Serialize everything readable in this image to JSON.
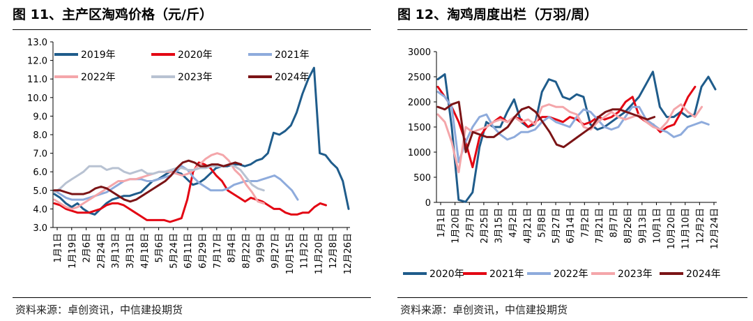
{
  "colors": {
    "c2019": "#1f5c8b",
    "c2020_left": "#e30613",
    "c2021_left": "#8eabdc",
    "c2022_left": "#f4a6aa",
    "c2023_left": "#b8c2d2",
    "c2024_left": "#7b1416",
    "c2020_right": "#1f5c8b",
    "c2021_right": "#e30613",
    "c2022_right": "#8eabdc",
    "c2023_right": "#f4a6aa",
    "c2024_right": "#7b1416"
  },
  "panel_left": {
    "title": "图 11、主产区淘鸡价格（元/斤）",
    "source": "资料来源：卓创资讯，中信建投期货"
  },
  "panel_right": {
    "title": "图 12、淘鸡周度出栏（万羽/周）",
    "source": "资料来源：卓创资讯，中信建投期货"
  },
  "chart_data": [
    {
      "type": "line",
      "title": "主产区淘鸡价格（元/斤）",
      "ylim": [
        3.0,
        13.0
      ],
      "yticks": [
        "3.0",
        "4.0",
        "5.0",
        "6.0",
        "7.0",
        "8.0",
        "9.0",
        "10.0",
        "11.0",
        "12.0",
        "13.0"
      ],
      "x_ticks": [
        "1月1日",
        "1月19日",
        "2月6日",
        "2月24日",
        "3月13日",
        "3月31日",
        "4月18日",
        "5月6日",
        "5月24日",
        "6月11日",
        "6月29日",
        "7月17日",
        "8月4日",
        "8月22日",
        "9月9日",
        "9月27日",
        "10月15日",
        "11月2日",
        "11月20日",
        "12月8日",
        "12月26日"
      ],
      "legend_position": "top",
      "series": [
        {
          "name": "2019年",
          "color_key": "c2019",
          "values": [
            4.8,
            4.6,
            4.3,
            4.1,
            4.3,
            4.0,
            3.8,
            3.7,
            4.0,
            4.3,
            4.5,
            4.6,
            4.7,
            4.7,
            4.8,
            4.9,
            5.2,
            5.5,
            5.6,
            5.8,
            6.0,
            6.0,
            5.9,
            5.6,
            5.3,
            5.4,
            5.6,
            5.9,
            6.2,
            6.3,
            6.3,
            6.4,
            6.4,
            6.3,
            6.4,
            6.6,
            6.7,
            7.0,
            8.1,
            8.0,
            8.2,
            8.5,
            9.2,
            10.2,
            11.0,
            11.6,
            7.0,
            6.9,
            6.5,
            6.2,
            5.5,
            4.0
          ]
        },
        {
          "name": "2020年",
          "color_key": "c2020_left",
          "values": [
            4.3,
            4.2,
            4.0,
            3.9,
            3.8,
            3.8,
            3.8,
            3.9,
            4.0,
            4.2,
            4.3,
            4.3,
            4.2,
            4.0,
            3.8,
            3.6,
            3.4,
            3.4,
            3.4,
            3.4,
            3.3,
            3.4,
            3.5,
            4.5,
            6.0,
            6.5,
            6.4,
            6.2,
            5.8,
            5.5,
            5.0,
            4.8,
            4.6,
            4.4,
            4.6,
            4.5,
            4.4,
            4.2,
            4.0,
            4.0,
            3.8,
            3.7,
            3.7,
            3.8,
            3.8,
            4.1,
            4.3,
            4.2
          ]
        },
        {
          "name": "2021年",
          "color_key": "c2021_left",
          "values": [
            5.0,
            4.8,
            4.6,
            4.5,
            4.5,
            4.5,
            4.6,
            4.7,
            4.8,
            4.9,
            5.1,
            5.3,
            5.5,
            5.6,
            5.6,
            5.6,
            5.5,
            5.5,
            5.6,
            5.7,
            5.8,
            6.0,
            6.3,
            6.1,
            5.7,
            5.4,
            5.2,
            5.0,
            5.0,
            5.0,
            5.1,
            5.3,
            5.4,
            5.5,
            5.5,
            5.5,
            5.6,
            5.7,
            5.8,
            5.6,
            5.3,
            5.0,
            4.5
          ]
        },
        {
          "name": "2022年",
          "color_key": "c2022_left",
          "values": [
            4.5,
            4.3,
            4.1,
            4.0,
            4.1,
            4.3,
            4.5,
            4.7,
            4.9,
            5.1,
            5.3,
            5.5,
            5.5,
            5.6,
            5.6,
            5.7,
            5.8,
            5.9,
            6.0,
            6.0,
            6.0,
            5.9,
            5.8,
            5.9,
            6.1,
            6.4,
            6.7,
            6.9,
            7.0,
            6.9,
            6.6,
            6.1,
            5.8,
            5.3,
            4.9,
            4.4,
            4.3
          ]
        },
        {
          "name": "2023年",
          "color_key": "c2023_left",
          "values": [
            4.9,
            5.1,
            5.4,
            5.6,
            5.8,
            6.0,
            6.3,
            6.3,
            6.3,
            6.1,
            6.2,
            6.2,
            6.0,
            5.9,
            6.0,
            6.1,
            5.9,
            5.9,
            6.0,
            6.0,
            6.1,
            6.2,
            6.2,
            6.1,
            6.1,
            6.2,
            6.2,
            6.3,
            6.3,
            6.3,
            6.4,
            6.3,
            6.1,
            5.7,
            5.3,
            5.1,
            5.0
          ]
        },
        {
          "name": "2024年",
          "color_key": "c2024_left",
          "values": [
            5.0,
            5.0,
            4.9,
            4.8,
            4.8,
            4.8,
            4.9,
            5.1,
            5.2,
            5.1,
            4.9,
            4.7,
            4.5,
            4.4,
            4.5,
            4.7,
            4.9,
            5.1,
            5.3,
            5.5,
            5.8,
            6.2,
            6.5,
            6.6,
            6.5,
            6.3,
            6.3,
            6.4,
            6.4,
            6.3,
            6.4,
            6.5,
            6.4
          ]
        }
      ]
    },
    {
      "type": "line",
      "title": "淘鸡周度出栏（万羽/周）",
      "ylim": [
        0,
        3000
      ],
      "yticks": [
        "0",
        "500",
        "1000",
        "1500",
        "2000",
        "2500",
        "3000"
      ],
      "x_ticks": [
        "1月1日",
        "1月20日",
        "2月7日",
        "2月25日",
        "3月15日",
        "4月2日",
        "4月21日",
        "5月8日",
        "5月27日",
        "6月14日",
        "7月2日",
        "7月21日",
        "8月7日",
        "8月26日",
        "9月13日",
        "10月1日",
        "10月20日",
        "11月10日",
        "12月2日",
        "12月24日"
      ],
      "legend_position": "bottom",
      "series": [
        {
          "name": "2020年",
          "color_key": "c2020_right",
          "values": [
            2450,
            2550,
            1500,
            50,
            10,
            200,
            1100,
            1600,
            1500,
            1500,
            1800,
            2050,
            1600,
            1500,
            1550,
            2200,
            2450,
            2400,
            2100,
            2050,
            2150,
            2100,
            1550,
            1450,
            1500,
            1600,
            1700,
            1800,
            1950,
            2100,
            2350,
            2600,
            1900,
            1700,
            1700,
            1800,
            1700,
            1750,
            2300,
            2500,
            2250
          ]
        },
        {
          "name": "2021年",
          "color_key": "c2021_right",
          "values": [
            2300,
            2100,
            1900,
            1600,
            1200,
            700,
            1300,
            1500,
            1600,
            1700,
            1600,
            1700,
            1650,
            1500,
            1600,
            1700,
            1700,
            1650,
            1600,
            1700,
            1650,
            1550,
            1600,
            1700,
            1650,
            1700,
            1800,
            2000,
            2100,
            1700,
            1600,
            1550,
            1400,
            1500,
            1550,
            1800,
            2100,
            2300
          ]
        },
        {
          "name": "2022年",
          "color_key": "c2022_right",
          "values": [
            2200,
            2100,
            1900,
            800,
            1200,
            1500,
            1700,
            1750,
            1500,
            1350,
            1250,
            1300,
            1400,
            1400,
            1450,
            1600,
            1700,
            1600,
            1550,
            1500,
            1700,
            1850,
            1800,
            1650,
            1500,
            1450,
            1500,
            1700,
            1900,
            1900,
            1650,
            1550,
            1450,
            1400,
            1300,
            1350,
            1500,
            1550,
            1600,
            1550
          ]
        },
        {
          "name": "2023年",
          "color_key": "c2023_right",
          "values": [
            1750,
            1600,
            1200,
            600,
            1500,
            1400,
            1450,
            1500,
            1600,
            1650,
            1600,
            1700,
            1600,
            1650,
            1550,
            1900,
            1950,
            1900,
            1900,
            1800,
            1750,
            1500,
            1450,
            1600,
            1700,
            1800,
            1700,
            1650,
            1700,
            1750,
            1600,
            1500,
            1450,
            1600,
            1850,
            1950,
            1800,
            1700,
            1900
          ]
        },
        {
          "name": "2024年",
          "color_key": "c2024_right",
          "values": [
            1900,
            1850,
            1950,
            2000,
            1000,
            1400,
            1350,
            1300,
            1300,
            1400,
            1500,
            1700,
            1850,
            1900,
            1800,
            1600,
            1400,
            1150,
            1100,
            1200,
            1300,
            1400,
            1500,
            1700,
            1800,
            1850,
            1850,
            1800,
            1750,
            1700,
            1650,
            1700
          ]
        }
      ]
    }
  ]
}
